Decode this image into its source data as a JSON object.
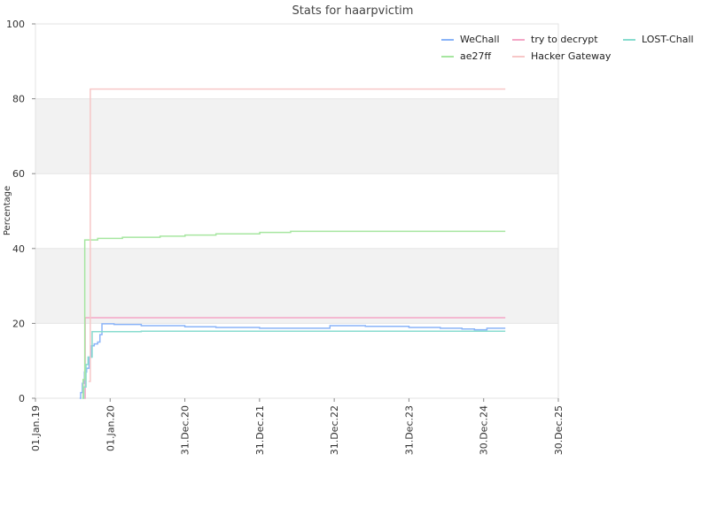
{
  "chart_data": {
    "type": "line",
    "title": "Stats for haarpvictim",
    "xlabel": "",
    "ylabel": "Percentage",
    "ylim": [
      0,
      100
    ],
    "xlim": [
      "2019-01-01",
      "2025-12-30"
    ],
    "x_ticks": [
      {
        "date": "2019-01-01",
        "label": "01.Jan.19"
      },
      {
        "date": "2020-01-01",
        "label": "01.Jan.20"
      },
      {
        "date": "2020-12-31",
        "label": "31.Dec.20"
      },
      {
        "date": "2021-12-31",
        "label": "31.Dec.21"
      },
      {
        "date": "2022-12-31",
        "label": "31.Dec.22"
      },
      {
        "date": "2023-12-31",
        "label": "31.Dec.23"
      },
      {
        "date": "2024-12-30",
        "label": "30.Dec.24"
      },
      {
        "date": "2025-12-30",
        "label": "30.Dec.25"
      }
    ],
    "y_ticks": [
      0,
      20,
      40,
      60,
      80,
      100
    ],
    "bands": [
      [
        20,
        40
      ],
      [
        60,
        80
      ]
    ],
    "grid": true,
    "legend_position": "top-right",
    "series": [
      {
        "name": "WeChall",
        "color": "#8ab4f8",
        "points": [
          [
            "2019-08-05",
            0
          ],
          [
            "2019-08-10",
            1.5
          ],
          [
            "2019-08-18",
            4
          ],
          [
            "2019-08-28",
            7
          ],
          [
            "2019-09-08",
            8
          ],
          [
            "2019-09-20",
            11
          ],
          [
            "2019-10-01",
            14
          ],
          [
            "2019-10-15",
            14.5
          ],
          [
            "2019-11-01",
            15
          ],
          [
            "2019-11-12",
            17
          ],
          [
            "2019-11-22",
            19.9
          ],
          [
            "2020-01-20",
            19.7
          ],
          [
            "2020-06-01",
            19.4
          ],
          [
            "2020-12-31",
            19.1
          ],
          [
            "2021-06-01",
            18.9
          ],
          [
            "2021-12-31",
            18.7
          ],
          [
            "2022-06-01",
            18.7
          ],
          [
            "2022-11-30",
            18.7
          ],
          [
            "2022-12-10",
            19.4
          ],
          [
            "2023-06-01",
            19.2
          ],
          [
            "2023-12-31",
            18.9
          ],
          [
            "2024-06-01",
            18.7
          ],
          [
            "2024-09-15",
            18.5
          ],
          [
            "2024-11-15",
            18.3
          ],
          [
            "2025-01-15",
            18.7
          ],
          [
            "2025-04-15",
            18.7
          ]
        ]
      },
      {
        "name": "try to decrypt",
        "color": "#f4a6c6",
        "points": [
          [
            "2019-08-28",
            0
          ],
          [
            "2019-09-01",
            21.5
          ],
          [
            "2025-04-15",
            21.5
          ]
        ]
      },
      {
        "name": "LOST-Chall",
        "color": "#88dccf",
        "points": [
          [
            "2019-08-20",
            0
          ],
          [
            "2019-08-25",
            3
          ],
          [
            "2019-09-05",
            9
          ],
          [
            "2019-09-15",
            11
          ],
          [
            "2019-10-05",
            17.8
          ],
          [
            "2020-06-01",
            17.9
          ],
          [
            "2022-06-01",
            17.9
          ],
          [
            "2025-04-15",
            17.9
          ]
        ]
      },
      {
        "name": "ae27ff",
        "color": "#a6e6a0",
        "points": [
          [
            "2019-08-18",
            0
          ],
          [
            "2019-08-22",
            5
          ],
          [
            "2019-08-30",
            42.3
          ],
          [
            "2019-11-01",
            42.7
          ],
          [
            "2020-03-01",
            43
          ],
          [
            "2020-09-01",
            43.3
          ],
          [
            "2021-01-01",
            43.6
          ],
          [
            "2021-06-01",
            43.9
          ],
          [
            "2022-01-01",
            44.3
          ],
          [
            "2022-06-01",
            44.6
          ],
          [
            "2023-06-01",
            44.6
          ],
          [
            "2025-04-15",
            44.6
          ]
        ]
      },
      {
        "name": "Hacker Gateway",
        "color": "#f7c7c7",
        "points": [
          [
            "2019-09-18",
            4.5
          ],
          [
            "2019-09-25",
            4.5
          ],
          [
            "2019-09-26",
            82.6
          ],
          [
            "2025-04-15",
            82.6
          ]
        ]
      }
    ],
    "legend_order": [
      "WeChall",
      "try to decrypt",
      "LOST-Chall",
      "ae27ff",
      "Hacker Gateway"
    ]
  }
}
